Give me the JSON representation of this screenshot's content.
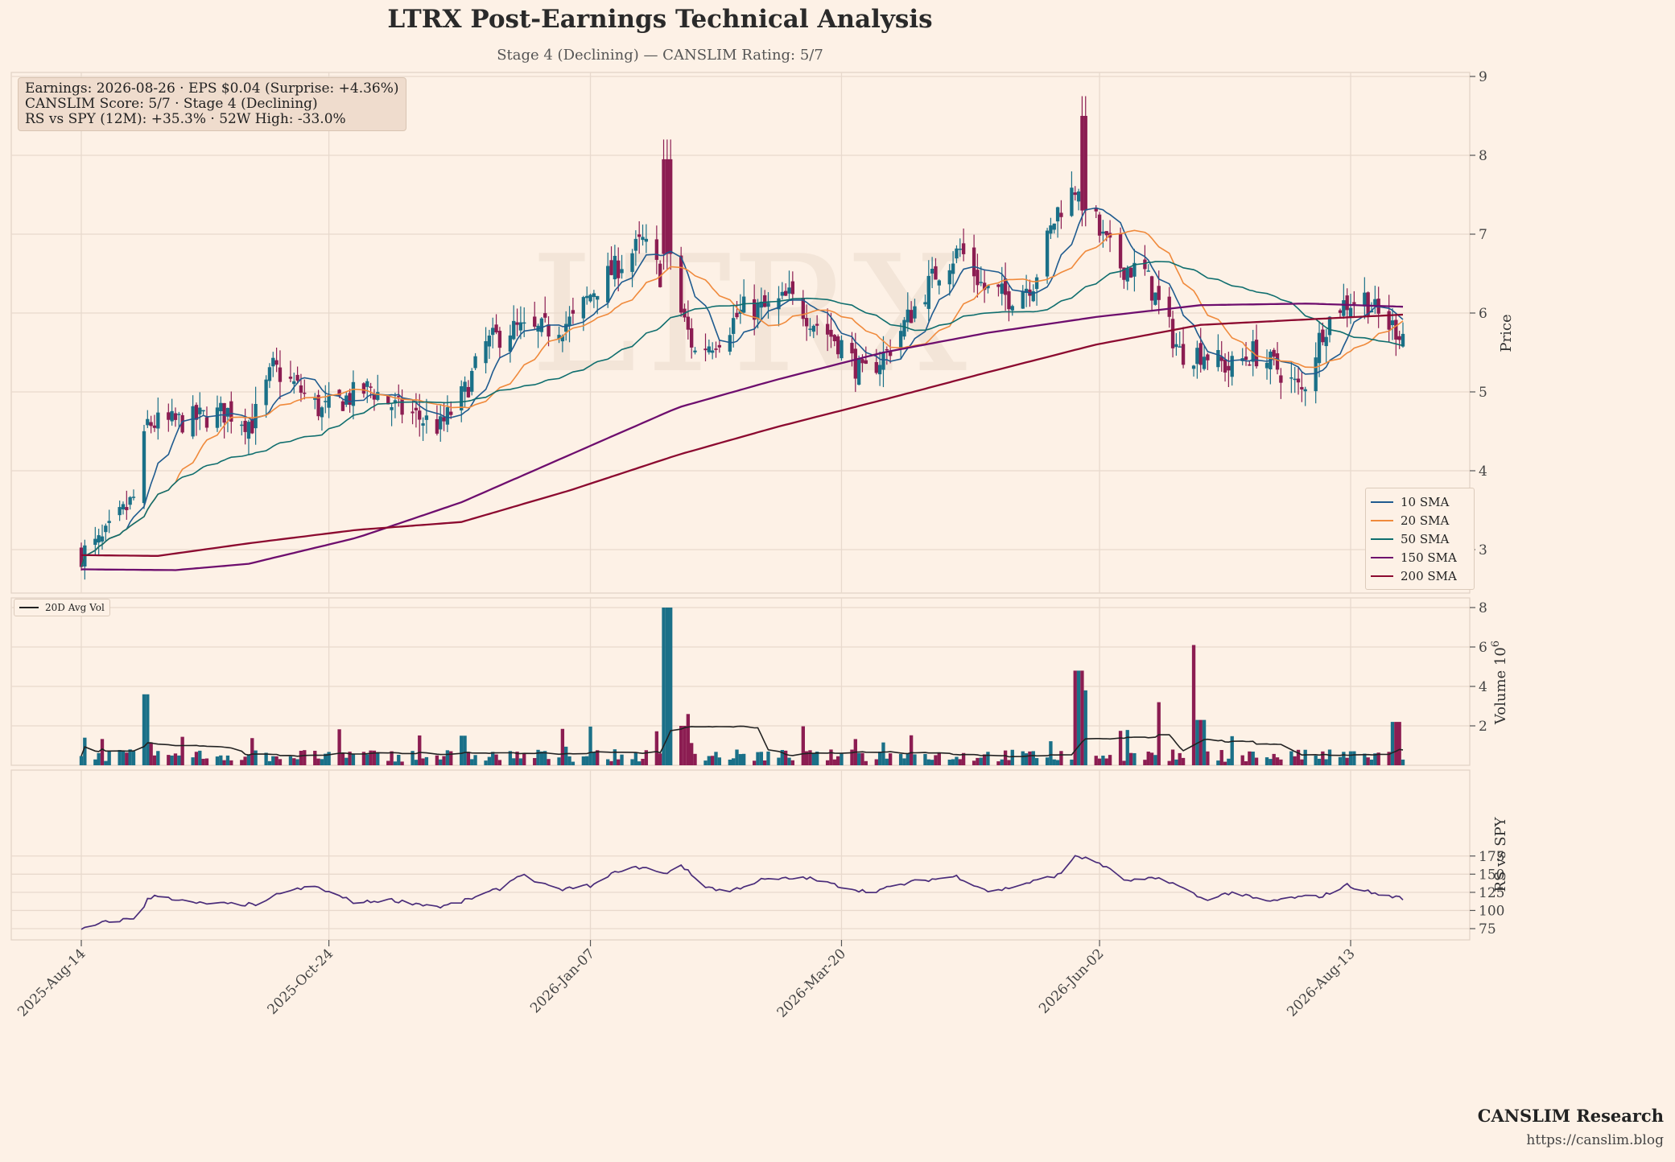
{
  "title": "LTRX Post-Earnings Technical Analysis",
  "subtitle": "Stage 4 (Declining) — CANSLIM Rating: 5/7",
  "info_box": {
    "line1": "Earnings: 2026-08-26 · EPS $0.04 (Surprise: +4.36%)",
    "line2": "CANSLIM Score: 5/7 · Stage 4 (Declining)",
    "line3": "RS vs SPY (12M): +35.3% · 52W High: -33.0%"
  },
  "watermark": "LTRX",
  "colors": {
    "background": "#fdf1e6",
    "up": "#1a7088",
    "down": "#8c1d52",
    "sma10": "#1f5b8f",
    "sma20": "#f08a3c",
    "sma50": "#0f6e6e",
    "sma150": "#6e0e6e",
    "sma200": "#8c0a30",
    "avg_vol": "#222222",
    "rs": "#4a2c7a",
    "grid": "#e8d9cd"
  },
  "brand": {
    "name": "CANSLIM Research",
    "url": "https://canslim.blog"
  },
  "chart_data": [
    {
      "type": "candlestick",
      "panel": "price",
      "ylabel": "Price",
      "ylim": [
        2.7,
        9.1
      ],
      "yticks": [
        3,
        4,
        5,
        6,
        7,
        8,
        9
      ],
      "x_start": "2025-08-14",
      "x_end": "2026-08-28",
      "x_ticks": [
        "2025-Aug-14",
        "2025-Oct-24",
        "2026-Jan-07",
        "2026-Mar-20",
        "2026-Jun-02",
        "2026-Aug-13"
      ],
      "close_anchors": [
        [
          "2025-08-14",
          2.95
        ],
        [
          "2025-08-20",
          3.1
        ],
        [
          "2025-08-25",
          3.4
        ],
        [
          "2025-08-29",
          3.65
        ],
        [
          "2025-09-02",
          4.6
        ],
        [
          "2025-09-08",
          4.6
        ],
        [
          "2025-09-15",
          4.65
        ],
        [
          "2025-09-25",
          4.75
        ],
        [
          "2025-10-02",
          4.6
        ],
        [
          "2025-10-08",
          5.3
        ],
        [
          "2025-10-15",
          5.05
        ],
        [
          "2025-10-22",
          4.75
        ],
        [
          "2025-10-28",
          4.9
        ],
        [
          "2025-11-05",
          5.05
        ],
        [
          "2025-11-12",
          4.8
        ],
        [
          "2025-11-20",
          4.65
        ],
        [
          "2025-11-25",
          4.55
        ],
        [
          "2025-12-02",
          5.0
        ],
        [
          "2025-12-08",
          5.6
        ],
        [
          "2025-12-15",
          5.8
        ],
        [
          "2025-12-22",
          5.75
        ],
        [
          "2026-01-02",
          5.9
        ],
        [
          "2026-01-08",
          6.3
        ],
        [
          "2026-01-15",
          6.6
        ],
        [
          "2026-01-22",
          6.9
        ],
        [
          "2026-01-28",
          6.4
        ],
        [
          "2026-02-02",
          6.0
        ],
        [
          "2026-02-06",
          5.5
        ],
        [
          "2026-02-13",
          5.7
        ],
        [
          "2026-02-20",
          6.05
        ],
        [
          "2026-02-27",
          6.05
        ],
        [
          "2026-03-05",
          6.2
        ],
        [
          "2026-03-12",
          5.9
        ],
        [
          "2026-03-20",
          5.6
        ],
        [
          "2026-03-26",
          5.2
        ],
        [
          "2026-04-02",
          5.5
        ],
        [
          "2026-04-09",
          6.0
        ],
        [
          "2026-04-16",
          6.5
        ],
        [
          "2026-04-23",
          6.8
        ],
        [
          "2026-04-30",
          6.3
        ],
        [
          "2026-05-07",
          6.2
        ],
        [
          "2026-05-14",
          6.4
        ],
        [
          "2026-05-21",
          7.3
        ],
        [
          "2026-05-28",
          7.7
        ],
        [
          "2026-06-02",
          7.0
        ],
        [
          "2026-06-08",
          6.6
        ],
        [
          "2026-06-15",
          6.5
        ],
        [
          "2026-06-20",
          6.0
        ],
        [
          "2026-06-25",
          5.5
        ],
        [
          "2026-07-02",
          5.5
        ],
        [
          "2026-07-09",
          5.3
        ],
        [
          "2026-07-16",
          5.5
        ],
        [
          "2026-07-23",
          5.3
        ],
        [
          "2026-07-30",
          5.0
        ],
        [
          "2026-08-05",
          5.8
        ],
        [
          "2026-08-10",
          6.1
        ],
        [
          "2026-08-17",
          6.2
        ],
        [
          "2026-08-22",
          5.9
        ],
        [
          "2026-08-28",
          5.75
        ]
      ],
      "spikes": [
        [
          "2026-01-29",
          8.2
        ],
        [
          "2026-05-29",
          8.75
        ]
      ]
    },
    {
      "type": "line",
      "panel": "price",
      "series": [
        {
          "name": "10 SMA",
          "window": 10
        },
        {
          "name": "20 SMA",
          "window": 20
        },
        {
          "name": "50 SMA",
          "window": 50
        },
        {
          "name": "150 SMA",
          "anchors": [
            [
              "2025-08-14",
              2.75
            ],
            [
              "2025-09-10",
              2.74
            ],
            [
              "2025-10-01",
              2.82
            ],
            [
              "2025-11-01",
              3.15
            ],
            [
              "2025-12-01",
              3.6
            ],
            [
              "2026-01-01",
              4.2
            ],
            [
              "2026-02-01",
              4.8
            ],
            [
              "2026-03-01",
              5.15
            ],
            [
              "2026-04-01",
              5.5
            ],
            [
              "2026-05-01",
              5.75
            ],
            [
              "2026-06-01",
              5.95
            ],
            [
              "2026-07-01",
              6.1
            ],
            [
              "2026-08-01",
              6.12
            ],
            [
              "2026-08-28",
              6.08
            ]
          ]
        },
        {
          "name": "200 SMA",
          "anchors": [
            [
              "2025-08-14",
              2.93
            ],
            [
              "2025-09-05",
              2.92
            ],
            [
              "2025-10-01",
              3.08
            ],
            [
              "2025-11-01",
              3.25
            ],
            [
              "2025-12-01",
              3.35
            ],
            [
              "2026-01-01",
              3.75
            ],
            [
              "2026-02-01",
              4.2
            ],
            [
              "2026-03-01",
              4.55
            ],
            [
              "2026-04-01",
              4.9
            ],
            [
              "2026-05-01",
              5.25
            ],
            [
              "2026-06-01",
              5.6
            ],
            [
              "2026-07-01",
              5.85
            ],
            [
              "2026-08-01",
              5.92
            ],
            [
              "2026-08-28",
              5.98
            ]
          ]
        }
      ]
    },
    {
      "type": "bar",
      "panel": "volume",
      "ylabel": "Volume",
      "yunit": "6",
      "ylim": [
        0,
        8
      ],
      "yticks": [
        2,
        4,
        6,
        8
      ],
      "baseline_millions": 0.45,
      "spikes": [
        [
          "2025-08-16",
          1.4
        ],
        [
          "2025-09-01",
          3.6
        ],
        [
          "2025-12-01",
          1.5
        ],
        [
          "2026-01-29",
          8.0
        ],
        [
          "2026-02-02",
          2.0
        ],
        [
          "2026-02-03",
          2.6
        ],
        [
          "2026-05-27",
          4.8
        ],
        [
          "2026-05-28",
          3.8
        ],
        [
          "2026-06-28",
          6.1
        ],
        [
          "2026-06-20",
          3.2
        ],
        [
          "2026-07-01",
          2.3
        ],
        [
          "2026-08-26",
          2.2
        ]
      ],
      "avg_series": {
        "name": "20D Avg Vol"
      }
    },
    {
      "type": "line",
      "panel": "rs",
      "ylabel": "RS vs SPY",
      "ylim": [
        68,
        178
      ],
      "yticks": [
        75,
        100,
        125,
        150,
        175
      ],
      "anchors": [
        [
          "2025-08-14",
          73
        ],
        [
          "2025-08-20",
          83
        ],
        [
          "2025-08-30",
          90
        ],
        [
          "2025-09-02",
          115
        ],
        [
          "2025-09-05",
          121
        ],
        [
          "2025-09-15",
          110
        ],
        [
          "2025-10-05",
          108
        ],
        [
          "2025-10-10",
          125
        ],
        [
          "2025-10-20",
          133
        ],
        [
          "2025-11-01",
          110
        ],
        [
          "2025-11-10",
          115
        ],
        [
          "2025-11-25",
          105
        ],
        [
          "2025-12-01",
          112
        ],
        [
          "2025-12-12",
          130
        ],
        [
          "2025-12-18",
          150
        ],
        [
          "2025-12-28",
          128
        ],
        [
          "2026-01-08",
          135
        ],
        [
          "2026-01-15",
          155
        ],
        [
          "2026-01-22",
          160
        ],
        [
          "2026-01-28",
          150
        ],
        [
          "2026-02-02",
          163
        ],
        [
          "2026-02-08",
          135
        ],
        [
          "2026-02-15",
          125
        ],
        [
          "2026-02-25",
          142
        ],
        [
          "2026-03-10",
          145
        ],
        [
          "2026-03-20",
          133
        ],
        [
          "2026-03-28",
          125
        ],
        [
          "2026-04-10",
          140
        ],
        [
          "2026-04-22",
          147
        ],
        [
          "2026-05-02",
          125
        ],
        [
          "2026-05-10",
          135
        ],
        [
          "2026-05-22",
          150
        ],
        [
          "2026-05-26",
          176
        ],
        [
          "2026-06-02",
          165
        ],
        [
          "2026-06-10",
          140
        ],
        [
          "2026-06-20",
          145
        ],
        [
          "2026-07-02",
          115
        ],
        [
          "2026-07-10",
          125
        ],
        [
          "2026-07-20",
          112
        ],
        [
          "2026-07-28",
          118
        ],
        [
          "2026-08-05",
          120
        ],
        [
          "2026-08-12",
          135
        ],
        [
          "2026-08-20",
          123
        ],
        [
          "2026-08-28",
          117
        ]
      ]
    }
  ]
}
